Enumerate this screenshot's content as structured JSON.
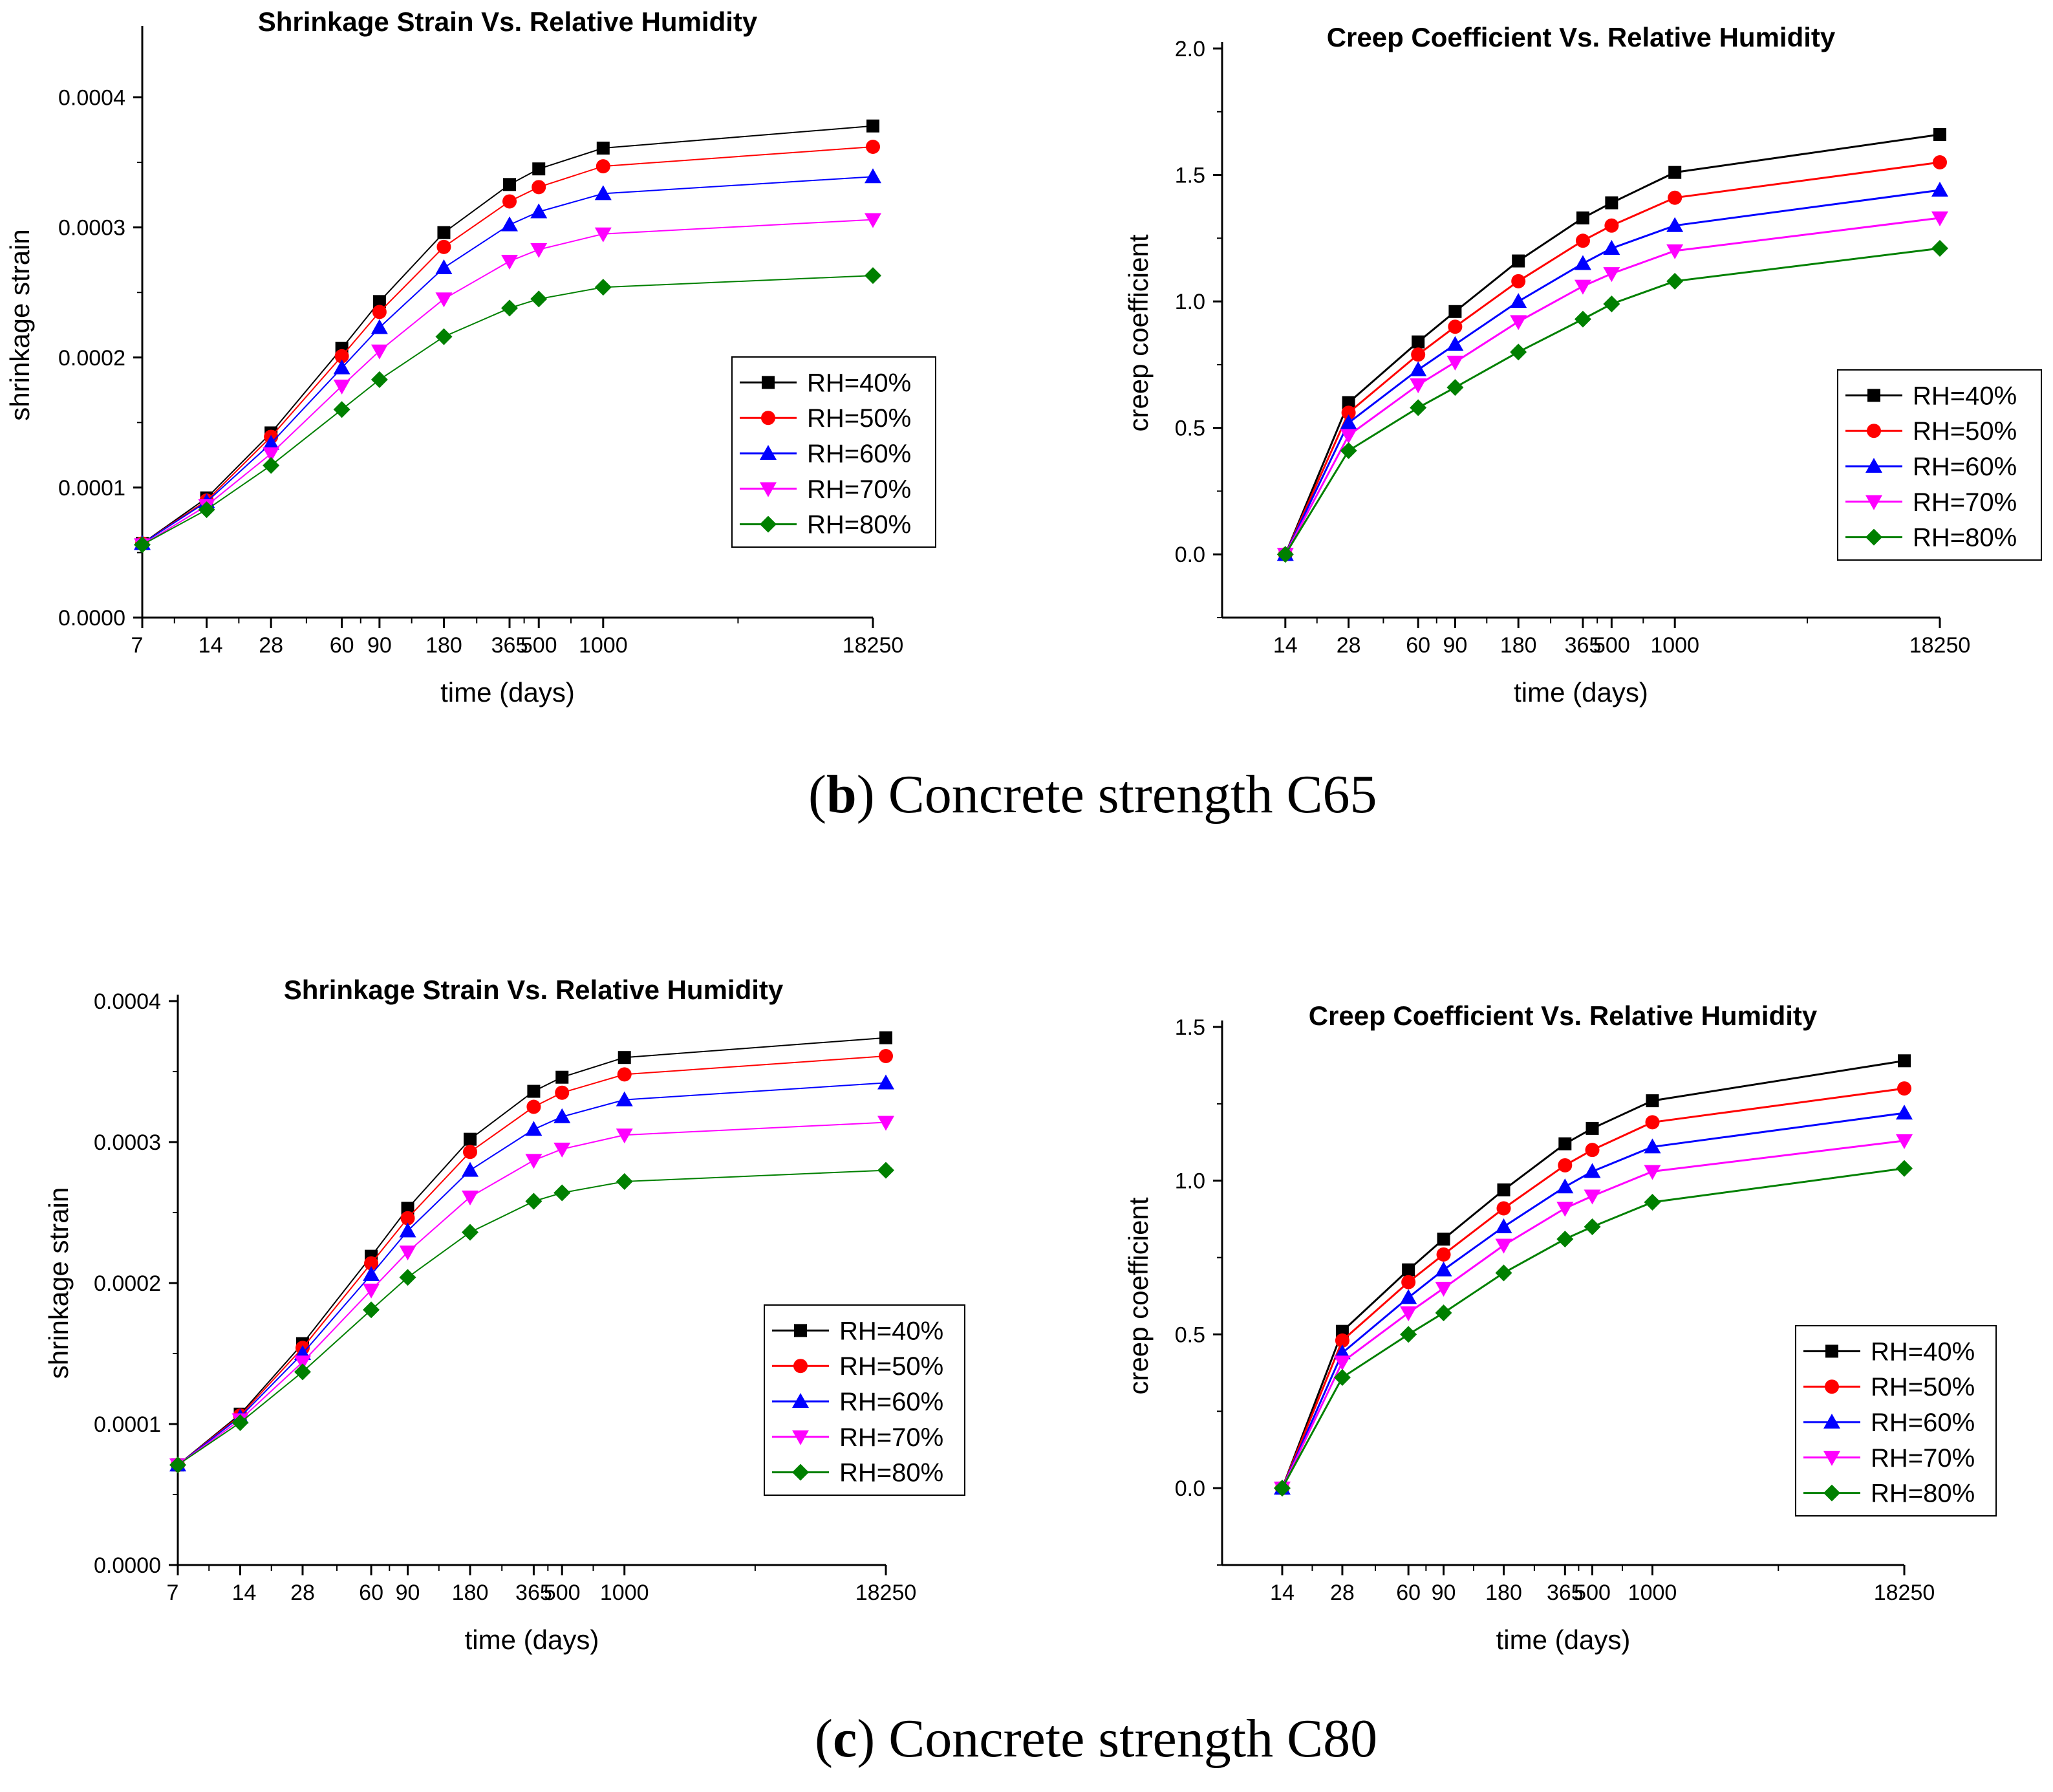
{
  "captions": {
    "b": {
      "letter": "b",
      "text": "Concrete strength C65"
    },
    "c": {
      "letter": "c",
      "text": "Concrete strength C80"
    }
  },
  "series_style": [
    {
      "name": "RH=40%",
      "color": "#000000",
      "marker": "square"
    },
    {
      "name": "RH=50%",
      "color": "#ff0000",
      "marker": "circle"
    },
    {
      "name": "RH=60%",
      "color": "#0000ff",
      "marker": "triangle-up"
    },
    {
      "name": "RH=70%",
      "color": "#ff00ff",
      "marker": "triangle-down"
    },
    {
      "name": "RH=80%",
      "color": "#008000",
      "marker": "diamond"
    }
  ],
  "chart_data": [
    {
      "id": "b-shrink",
      "type": "line",
      "title": "Shrinkage Strain Vs. Relative Humidity",
      "xlabel": "time (days)",
      "ylabel": "shrinkage strain",
      "x": [
        7,
        14,
        28,
        60,
        90,
        180,
        365,
        500,
        1000,
        18250
      ],
      "x_tick_labels": [
        "7",
        "14",
        "28",
        "60",
        "90",
        "180",
        "365",
        "500",
        "1000",
        "18250"
      ],
      "ylim": [
        0,
        0.00045
      ],
      "y_ticks": [
        "0.0000",
        "0.0001",
        "0.0002",
        "0.0003",
        "0.0004"
      ],
      "legend": "center-right",
      "series": [
        {
          "name": "RH=40%",
          "values": [
            5.7e-05,
            9.2e-05,
            0.000142,
            0.000207,
            0.000243,
            0.000296,
            0.000333,
            0.000345,
            0.000361,
            0.000378
          ]
        },
        {
          "name": "RH=50%",
          "values": [
            5.7e-05,
            9e-05,
            0.000139,
            0.000201,
            0.000235,
            0.000285,
            0.00032,
            0.000331,
            0.000347,
            0.000362
          ]
        },
        {
          "name": "RH=60%",
          "values": [
            5.7e-05,
            8.9e-05,
            0.000134,
            0.000192,
            0.000223,
            0.000269,
            0.000302,
            0.000312,
            0.000326,
            0.000339
          ]
        },
        {
          "name": "RH=70%",
          "values": [
            5.6e-05,
            8.6e-05,
            0.000126,
            0.000178,
            0.000205,
            0.000245,
            0.000274,
            0.000283,
            0.000295,
            0.000306
          ]
        },
        {
          "name": "RH=80%",
          "values": [
            5.6e-05,
            8.3e-05,
            0.000117,
            0.00016,
            0.000183,
            0.000216,
            0.000238,
            0.000245,
            0.000254,
            0.000263
          ]
        }
      ]
    },
    {
      "id": "b-creep",
      "type": "line",
      "title": "Creep Coefficient Vs. Relative Humidity",
      "xlabel": "time (days)",
      "ylabel": "creep coefficient",
      "x": [
        14,
        28,
        60,
        90,
        180,
        365,
        500,
        1000,
        18250
      ],
      "x_tick_labels": [
        "14",
        "28",
        "60",
        "90",
        "180",
        "365",
        "500",
        "1000",
        "18250"
      ],
      "ylim": [
        -0.25,
        2.0
      ],
      "y_ticks": [
        "0.0",
        "0.5",
        "1.0",
        "1.5",
        "2.0"
      ],
      "legend": "center-right",
      "series": [
        {
          "name": "RH=40%",
          "values": [
            0,
            0.6,
            0.84,
            0.96,
            1.16,
            1.33,
            1.39,
            1.51,
            1.66
          ]
        },
        {
          "name": "RH=50%",
          "values": [
            0,
            0.56,
            0.79,
            0.9,
            1.08,
            1.24,
            1.3,
            1.41,
            1.55
          ]
        },
        {
          "name": "RH=60%",
          "values": [
            0,
            0.52,
            0.73,
            0.83,
            1.0,
            1.15,
            1.21,
            1.3,
            1.44
          ]
        },
        {
          "name": "RH=70%",
          "values": [
            0,
            0.47,
            0.67,
            0.76,
            0.92,
            1.06,
            1.11,
            1.2,
            1.33
          ]
        },
        {
          "name": "RH=80%",
          "values": [
            0,
            0.41,
            0.58,
            0.66,
            0.8,
            0.93,
            0.99,
            1.08,
            1.21
          ]
        }
      ]
    },
    {
      "id": "c-shrink",
      "type": "line",
      "title": "Shrinkage Strain Vs. Relative Humidity",
      "xlabel": "time (days)",
      "ylabel": "shrinkage strain",
      "x": [
        7,
        14,
        28,
        60,
        90,
        180,
        365,
        500,
        1000,
        18250
      ],
      "x_tick_labels": [
        "7",
        "14",
        "28",
        "60",
        "90",
        "180",
        "365",
        "500",
        "1000",
        "18250"
      ],
      "ylim": [
        0,
        0.0004
      ],
      "y_ticks": [
        "0.0000",
        "0.0001",
        "0.0002",
        "0.0003",
        "0.0004"
      ],
      "legend": "center-right",
      "series": [
        {
          "name": "RH=40%",
          "values": [
            7.1e-05,
            0.000107,
            0.000157,
            0.000219,
            0.000253,
            0.000302,
            0.000336,
            0.000346,
            0.00036,
            0.000374
          ]
        },
        {
          "name": "RH=50%",
          "values": [
            7.1e-05,
            0.000106,
            0.000154,
            0.000214,
            0.000246,
            0.000293,
            0.000325,
            0.000335,
            0.000348,
            0.000361
          ]
        },
        {
          "name": "RH=60%",
          "values": [
            7.1e-05,
            0.000105,
            0.00015,
            0.000206,
            0.000237,
            0.00028,
            0.000309,
            0.000318,
            0.00033,
            0.000342
          ]
        },
        {
          "name": "RH=70%",
          "values": [
            7.1e-05,
            0.000103,
            0.000144,
            0.000195,
            0.000222,
            0.000261,
            0.000287,
            0.000295,
            0.000305,
            0.000314
          ]
        },
        {
          "name": "RH=80%",
          "values": [
            7.1e-05,
            0.000101,
            0.000137,
            0.000181,
            0.000204,
            0.000236,
            0.000258,
            0.000264,
            0.000272,
            0.00028
          ]
        }
      ]
    },
    {
      "id": "c-creep",
      "type": "line",
      "title": "Creep Coefficient Vs. Relative Humidity",
      "xlabel": "time (days)",
      "ylabel": "creep coefficient",
      "x": [
        14,
        28,
        60,
        90,
        180,
        365,
        500,
        1000,
        18250
      ],
      "x_tick_labels": [
        "14",
        "28",
        "60",
        "90",
        "180",
        "365",
        "500",
        "1000",
        "18250"
      ],
      "ylim": [
        -0.25,
        1.5
      ],
      "y_ticks": [
        "0.0",
        "0.5",
        "1.0",
        "1.5"
      ],
      "legend": "bottom-right",
      "series": [
        {
          "name": "RH=40%",
          "values": [
            0,
            0.51,
            0.71,
            0.81,
            0.97,
            1.12,
            1.17,
            1.26,
            1.39
          ]
        },
        {
          "name": "RH=50%",
          "values": [
            0,
            0.48,
            0.67,
            0.76,
            0.91,
            1.05,
            1.1,
            1.19,
            1.3
          ]
        },
        {
          "name": "RH=60%",
          "values": [
            0,
            0.44,
            0.62,
            0.71,
            0.85,
            0.98,
            1.03,
            1.11,
            1.22
          ]
        },
        {
          "name": "RH=70%",
          "values": [
            0,
            0.41,
            0.57,
            0.65,
            0.79,
            0.91,
            0.95,
            1.03,
            1.13
          ]
        },
        {
          "name": "RH=80%",
          "values": [
            0,
            0.36,
            0.5,
            0.57,
            0.7,
            0.81,
            0.85,
            0.93,
            1.04
          ]
        }
      ]
    }
  ]
}
